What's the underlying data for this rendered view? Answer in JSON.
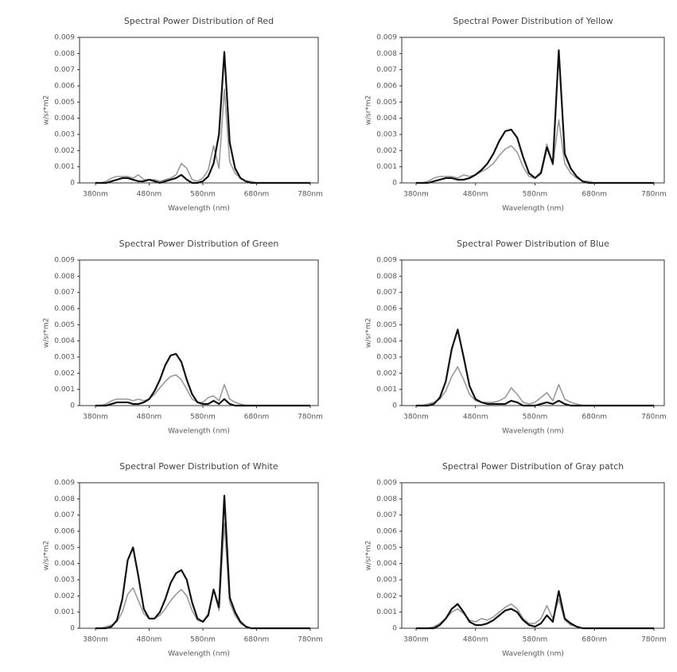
{
  "chart_data": [
    {
      "type": "line",
      "title": "Spectral Power Distribution of Red",
      "xlabel": "Wavelength (nm)",
      "ylabel": "w/sr*m2",
      "x": [
        380,
        390,
        400,
        410,
        420,
        430,
        440,
        450,
        460,
        470,
        480,
        490,
        500,
        510,
        520,
        530,
        540,
        550,
        560,
        570,
        580,
        590,
        600,
        610,
        620,
        630,
        640,
        650,
        660,
        670,
        680,
        690,
        700,
        710,
        720,
        730,
        740,
        750,
        760,
        770,
        780
      ],
      "xlim": [
        380,
        780
      ],
      "ylim": [
        0,
        0.009
      ],
      "xticks": [
        {
          "value": 380,
          "label": "380nm"
        },
        {
          "value": 480,
          "label": "480nm"
        },
        {
          "value": 580,
          "label": "580nm"
        },
        {
          "value": 680,
          "label": "680nm"
        },
        {
          "value": 780,
          "label": "780nm"
        }
      ],
      "yticks": [
        0,
        0.001,
        0.002,
        0.003,
        0.004,
        0.005,
        0.006,
        0.007,
        0.008,
        0.009
      ],
      "series": [
        {
          "color": "#999999",
          "values": [
            0,
            0,
            0.0001,
            0.0003,
            0.0004,
            0.0004,
            0.0004,
            0.0003,
            0.0005,
            0.0002,
            0.0002,
            0.0002,
            0.0001,
            0.0002,
            0.0003,
            0.0005,
            0.0012,
            0.0009,
            0.0002,
            0.0001,
            0.0003,
            0.0008,
            0.0023,
            0.0009,
            0.0058,
            0.0013,
            0.0006,
            0.0003,
            0.0001,
            0.0001,
            0,
            0,
            0,
            0,
            0,
            0,
            0,
            0,
            0,
            0,
            0
          ]
        },
        {
          "color": "#111111",
          "values": [
            0,
            0,
            0,
            0.0001,
            0.0002,
            0.0003,
            0.0003,
            0.0002,
            0.0001,
            0.0001,
            0.0002,
            0.0001,
            0,
            0.0001,
            0.0002,
            0.0003,
            0.0005,
            0.0002,
            0,
            0,
            0.0001,
            0.0004,
            0.0012,
            0.003,
            0.0081,
            0.0025,
            0.0009,
            0.0003,
            0.0001,
            0,
            0,
            0,
            0,
            0,
            0,
            0,
            0,
            0,
            0,
            0,
            0
          ]
        }
      ]
    },
    {
      "type": "line",
      "title": "Spectral Power Distribution of Yellow",
      "xlabel": "Wavelength (nm)",
      "ylabel": "w/sr*m2",
      "x": [
        380,
        390,
        400,
        410,
        420,
        430,
        440,
        450,
        460,
        470,
        480,
        490,
        500,
        510,
        520,
        530,
        540,
        550,
        560,
        570,
        580,
        590,
        600,
        610,
        620,
        630,
        640,
        650,
        660,
        670,
        680,
        690,
        700,
        710,
        720,
        730,
        740,
        750,
        760,
        770,
        780
      ],
      "xlim": [
        380,
        780
      ],
      "ylim": [
        0,
        0.009
      ],
      "xticks": [
        {
          "value": 380,
          "label": "380nm"
        },
        {
          "value": 480,
          "label": "480nm"
        },
        {
          "value": 580,
          "label": "580nm"
        },
        {
          "value": 680,
          "label": "680nm"
        },
        {
          "value": 780,
          "label": "780nm"
        }
      ],
      "yticks": [
        0,
        0.001,
        0.002,
        0.003,
        0.004,
        0.005,
        0.006,
        0.007,
        0.008,
        0.009
      ],
      "series": [
        {
          "color": "#999999",
          "values": [
            0,
            0,
            0.0001,
            0.0003,
            0.0004,
            0.0004,
            0.0004,
            0.0003,
            0.0005,
            0.0004,
            0.0005,
            0.0007,
            0.0009,
            0.0012,
            0.0017,
            0.0021,
            0.0023,
            0.0019,
            0.001,
            0.0004,
            0.0003,
            0.0007,
            0.0024,
            0.0011,
            0.0039,
            0.0012,
            0.0006,
            0.0003,
            0.0001,
            0.0001,
            0,
            0,
            0,
            0,
            0,
            0,
            0,
            0,
            0,
            0,
            0
          ]
        },
        {
          "color": "#111111",
          "values": [
            0,
            0,
            0,
            0.0001,
            0.0002,
            0.0003,
            0.0003,
            0.0002,
            0.0002,
            0.0003,
            0.0005,
            0.0008,
            0.0012,
            0.0018,
            0.0026,
            0.0032,
            0.0033,
            0.0028,
            0.0016,
            0.0006,
            0.0003,
            0.0006,
            0.0022,
            0.0012,
            0.0082,
            0.0018,
            0.0009,
            0.0004,
            0.0001,
            0,
            0,
            0,
            0,
            0,
            0,
            0,
            0,
            0,
            0,
            0,
            0
          ]
        }
      ]
    },
    {
      "type": "line",
      "title": "Spectral Power Distribution of Green",
      "xlabel": "Wavelength (nm)",
      "ylabel": "w/sr*m2",
      "x": [
        380,
        390,
        400,
        410,
        420,
        430,
        440,
        450,
        460,
        470,
        480,
        490,
        500,
        510,
        520,
        530,
        540,
        550,
        560,
        570,
        580,
        590,
        600,
        610,
        620,
        630,
        640,
        650,
        660,
        670,
        680,
        690,
        700,
        710,
        720,
        730,
        740,
        750,
        760,
        770,
        780
      ],
      "xlim": [
        380,
        780
      ],
      "ylim": [
        0,
        0.009
      ],
      "xticks": [
        {
          "value": 380,
          "label": "380nm"
        },
        {
          "value": 480,
          "label": "480nm"
        },
        {
          "value": 580,
          "label": "580nm"
        },
        {
          "value": 680,
          "label": "680nm"
        },
        {
          "value": 780,
          "label": "780nm"
        }
      ],
      "yticks": [
        0,
        0.001,
        0.002,
        0.003,
        0.004,
        0.005,
        0.006,
        0.007,
        0.008,
        0.009
      ],
      "series": [
        {
          "color": "#999999",
          "values": [
            0,
            0,
            0.0001,
            0.0003,
            0.0004,
            0.0004,
            0.0004,
            0.0003,
            0.0004,
            0.0003,
            0.0004,
            0.0007,
            0.0011,
            0.0015,
            0.0018,
            0.0019,
            0.0016,
            0.001,
            0.0004,
            0.0002,
            0.0002,
            0.0005,
            0.0006,
            0.0003,
            0.0013,
            0.0004,
            0.0002,
            0.0001,
            0,
            0,
            0,
            0,
            0,
            0,
            0,
            0,
            0,
            0,
            0,
            0,
            0
          ]
        },
        {
          "color": "#111111",
          "values": [
            0,
            0,
            0,
            0.0001,
            0.0002,
            0.0002,
            0.0002,
            0.0001,
            0.0001,
            0.0002,
            0.0004,
            0.0009,
            0.0016,
            0.0025,
            0.0031,
            0.0032,
            0.0027,
            0.0016,
            0.0007,
            0.0002,
            0.0001,
            0.0001,
            0.0003,
            0.0001,
            0.0004,
            0.0001,
            0,
            0,
            0,
            0,
            0,
            0,
            0,
            0,
            0,
            0,
            0,
            0,
            0,
            0,
            0
          ]
        }
      ]
    },
    {
      "type": "line",
      "title": "Spectral Power Distribution of Blue",
      "xlabel": "Wavelength (nm)",
      "ylabel": "w/sr*m2",
      "x": [
        380,
        390,
        400,
        410,
        420,
        430,
        440,
        450,
        460,
        470,
        480,
        490,
        500,
        510,
        520,
        530,
        540,
        550,
        560,
        570,
        580,
        590,
        600,
        610,
        620,
        630,
        640,
        650,
        660,
        670,
        680,
        690,
        700,
        710,
        720,
        730,
        740,
        750,
        760,
        770,
        780
      ],
      "xlim": [
        380,
        780
      ],
      "ylim": [
        0,
        0.009
      ],
      "xticks": [
        {
          "value": 380,
          "label": "380nm"
        },
        {
          "value": 480,
          "label": "480nm"
        },
        {
          "value": 580,
          "label": "580nm"
        },
        {
          "value": 680,
          "label": "680nm"
        },
        {
          "value": 780,
          "label": "780nm"
        }
      ],
      "yticks": [
        0,
        0.001,
        0.002,
        0.003,
        0.004,
        0.005,
        0.006,
        0.007,
        0.008,
        0.009
      ],
      "series": [
        {
          "color": "#999999",
          "values": [
            0,
            0,
            0.0001,
            0.0002,
            0.0004,
            0.0009,
            0.0018,
            0.0024,
            0.0016,
            0.0007,
            0.0003,
            0.0002,
            0.0002,
            0.0002,
            0.0003,
            0.0005,
            0.0011,
            0.0007,
            0.0002,
            0.0001,
            0.0002,
            0.0005,
            0.0008,
            0.0003,
            0.0013,
            0.0004,
            0.0002,
            0.0001,
            0,
            0,
            0,
            0,
            0,
            0,
            0,
            0,
            0,
            0,
            0,
            0,
            0
          ]
        },
        {
          "color": "#111111",
          "values": [
            0,
            0,
            0,
            0.0001,
            0.0005,
            0.0015,
            0.0035,
            0.0047,
            0.003,
            0.0012,
            0.0004,
            0.0002,
            0.0001,
            0.0001,
            0.0001,
            0.0001,
            0.0003,
            0.0002,
            0,
            0,
            0,
            0.0001,
            0.0002,
            0.0001,
            0.0003,
            0.0001,
            0,
            0,
            0,
            0,
            0,
            0,
            0,
            0,
            0,
            0,
            0,
            0,
            0,
            0,
            0
          ]
        }
      ]
    },
    {
      "type": "line",
      "title": "Spectral Power Distribution of White",
      "xlabel": "Wavelength (nm)",
      "ylabel": "w/sr*m2",
      "x": [
        380,
        390,
        400,
        410,
        420,
        430,
        440,
        450,
        460,
        470,
        480,
        490,
        500,
        510,
        520,
        530,
        540,
        550,
        560,
        570,
        580,
        590,
        600,
        610,
        620,
        630,
        640,
        650,
        660,
        670,
        680,
        690,
        700,
        710,
        720,
        730,
        740,
        750,
        760,
        770,
        780
      ],
      "xlim": [
        380,
        780
      ],
      "ylim": [
        0,
        0.009
      ],
      "xticks": [
        {
          "value": 380,
          "label": "380nm"
        },
        {
          "value": 480,
          "label": "480nm"
        },
        {
          "value": 580,
          "label": "580nm"
        },
        {
          "value": 680,
          "label": "680nm"
        },
        {
          "value": 780,
          "label": "780nm"
        }
      ],
      "yticks": [
        0,
        0.001,
        0.002,
        0.003,
        0.004,
        0.005,
        0.006,
        0.007,
        0.008,
        0.009
      ],
      "series": [
        {
          "color": "#999999",
          "values": [
            0,
            0,
            0.0001,
            0.0002,
            0.0004,
            0.001,
            0.0021,
            0.0025,
            0.0017,
            0.0009,
            0.0006,
            0.0006,
            0.0008,
            0.0012,
            0.0017,
            0.0021,
            0.0024,
            0.002,
            0.0011,
            0.0005,
            0.0004,
            0.0009,
            0.0024,
            0.0011,
            0.0065,
            0.0016,
            0.0008,
            0.0003,
            0.0001,
            0,
            0,
            0,
            0,
            0,
            0,
            0,
            0,
            0,
            0,
            0,
            0
          ]
        },
        {
          "color": "#111111",
          "values": [
            0,
            0,
            0,
            0.0001,
            0.0005,
            0.0018,
            0.0042,
            0.005,
            0.0032,
            0.0012,
            0.0006,
            0.0006,
            0.001,
            0.0018,
            0.0028,
            0.0034,
            0.0036,
            0.003,
            0.0016,
            0.0006,
            0.0004,
            0.0008,
            0.0024,
            0.0013,
            0.0082,
            0.0019,
            0.001,
            0.0004,
            0.0001,
            0,
            0,
            0,
            0,
            0,
            0,
            0,
            0,
            0,
            0,
            0,
            0
          ]
        }
      ]
    },
    {
      "type": "line",
      "title": "Spectral Power Distribution of Gray  patch",
      "xlabel": "Wavelength (nm)",
      "ylabel": "w/sr*m2",
      "x": [
        380,
        390,
        400,
        410,
        420,
        430,
        440,
        450,
        460,
        470,
        480,
        490,
        500,
        510,
        520,
        530,
        540,
        550,
        560,
        570,
        580,
        590,
        600,
        610,
        620,
        630,
        640,
        650,
        660,
        670,
        680,
        690,
        700,
        710,
        720,
        730,
        740,
        750,
        760,
        770,
        780
      ],
      "xlim": [
        380,
        780
      ],
      "ylim": [
        0,
        0.009
      ],
      "xticks": [
        {
          "value": 380,
          "label": "380nm"
        },
        {
          "value": 480,
          "label": "480nm"
        },
        {
          "value": 580,
          "label": "580nm"
        },
        {
          "value": 680,
          "label": "680nm"
        },
        {
          "value": 780,
          "label": "780nm"
        }
      ],
      "yticks": [
        0,
        0.001,
        0.002,
        0.003,
        0.004,
        0.005,
        0.006,
        0.007,
        0.008,
        0.009
      ],
      "series": [
        {
          "color": "#999999",
          "values": [
            0,
            0,
            0,
            0.0001,
            0.0003,
            0.0006,
            0.001,
            0.0012,
            0.0009,
            0.0005,
            0.0004,
            0.0006,
            0.0005,
            0.0007,
            0.001,
            0.0013,
            0.0015,
            0.0012,
            0.0006,
            0.0003,
            0.0003,
            0.0006,
            0.0014,
            0.0006,
            0.0018,
            0.0005,
            0.0002,
            0.0001,
            0,
            0,
            0,
            0,
            0,
            0,
            0,
            0,
            0,
            0,
            0,
            0,
            0
          ]
        },
        {
          "color": "#111111",
          "values": [
            0,
            0,
            0,
            0,
            0.0002,
            0.0006,
            0.0012,
            0.0015,
            0.001,
            0.0004,
            0.0002,
            0.0002,
            0.0003,
            0.0005,
            0.0008,
            0.0011,
            0.0012,
            0.001,
            0.0005,
            0.0002,
            0.0001,
            0.0003,
            0.0008,
            0.0004,
            0.0023,
            0.0006,
            0.0003,
            0.0001,
            0,
            0,
            0,
            0,
            0,
            0,
            0,
            0,
            0,
            0,
            0,
            0,
            0
          ]
        }
      ]
    }
  ]
}
